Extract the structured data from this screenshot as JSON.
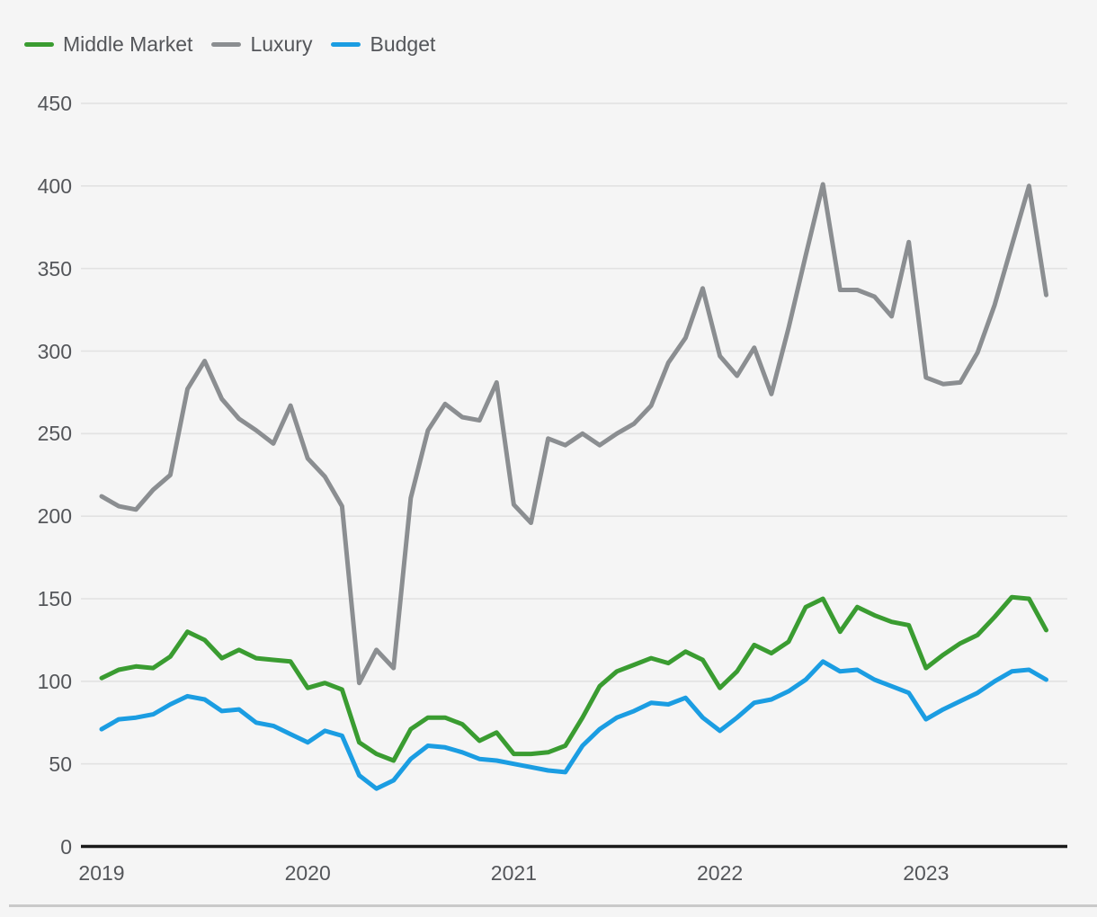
{
  "colors": {
    "background": "#f5f5f5",
    "grid": "#e2e2e2",
    "axis": "#1a1a1a",
    "text": "#54565a",
    "divider": "#c9c9c9"
  },
  "chart_data": {
    "type": "line",
    "title": "",
    "x_unit": "month",
    "x_range": [
      "2019-01",
      "2023-08"
    ],
    "x_tick_labels": [
      "2019",
      "2020",
      "2021",
      "2022",
      "2023"
    ],
    "x_tick_month_indices": [
      0,
      12,
      24,
      36,
      48
    ],
    "ylim": [
      0,
      450
    ],
    "y_tick_step": 50,
    "y_tick_labels": [
      "0",
      "50",
      "100",
      "150",
      "200",
      "250",
      "300",
      "350",
      "400",
      "450"
    ],
    "grid": true,
    "legend_position": "top-left",
    "series": [
      {
        "name": "Middle Market",
        "color": "#3a9c31",
        "values": [
          102,
          107,
          109,
          108,
          115,
          130,
          125,
          114,
          119,
          114,
          113,
          112,
          96,
          99,
          95,
          63,
          56,
          52,
          71,
          78,
          78,
          74,
          64,
          69,
          56,
          56,
          57,
          61,
          78,
          97,
          106,
          110,
          114,
          111,
          118,
          113,
          96,
          106,
          122,
          117,
          124,
          145,
          150,
          130,
          145,
          140,
          136,
          134,
          108,
          116,
          123,
          128,
          139,
          151,
          150,
          131
        ]
      },
      {
        "name": "Luxury",
        "color": "#8b8e91",
        "values": [
          212,
          206,
          204,
          216,
          225,
          277,
          294,
          271,
          259,
          252,
          244,
          267,
          235,
          224,
          206,
          99,
          119,
          108,
          211,
          252,
          268,
          260,
          258,
          281,
          207,
          196,
          247,
          243,
          250,
          243,
          250,
          256,
          267,
          293,
          308,
          338,
          297,
          285,
          302,
          274,
          314,
          358,
          401,
          337,
          337,
          333,
          321,
          366,
          284,
          280,
          281,
          299,
          328,
          364,
          400,
          334
        ]
      },
      {
        "name": "Budget",
        "color": "#1b9de2",
        "values": [
          71,
          77,
          78,
          80,
          86,
          91,
          89,
          82,
          83,
          75,
          73,
          68,
          63,
          70,
          67,
          43,
          35,
          40,
          53,
          61,
          60,
          57,
          53,
          52,
          50,
          48,
          46,
          45,
          61,
          71,
          78,
          82,
          87,
          86,
          90,
          78,
          70,
          78,
          87,
          89,
          94,
          101,
          112,
          106,
          107,
          101,
          97,
          93,
          77,
          83,
          88,
          93,
          100,
          106,
          107,
          101
        ]
      }
    ]
  }
}
